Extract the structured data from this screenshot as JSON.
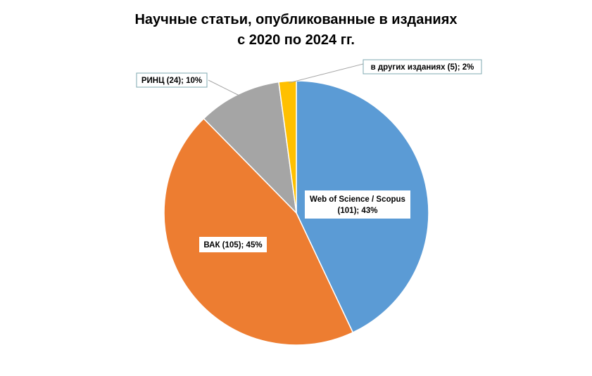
{
  "chart_data": {
    "type": "pie",
    "title": [
      "Научные статьи, опубликованные в изданиях",
      "с 2020 по 2024 гг."
    ],
    "slices": [
      {
        "name": "Web of Science  / Scopus",
        "count": 101,
        "percent": 43,
        "color": "#5B9BD5",
        "label_lines": [
          "Web of Science  / Scopus",
          "(101); 43%"
        ]
      },
      {
        "name": "ВАК",
        "count": 105,
        "percent": 45,
        "color": "#ED7D31",
        "label_lines": [
          "ВАК (105); 45%"
        ]
      },
      {
        "name": "РИНЦ",
        "count": 24,
        "percent": 10,
        "color": "#A5A5A5",
        "label_lines": [
          "РИНЦ (24);  10%"
        ]
      },
      {
        "name": "в других изданиях",
        "count": 5,
        "percent": 2,
        "color": "#FFC000",
        "label_lines": [
          "в других изданиях (5);  2%"
        ]
      }
    ],
    "start_angle": "top",
    "direction": "clockwise",
    "legend": "none"
  }
}
